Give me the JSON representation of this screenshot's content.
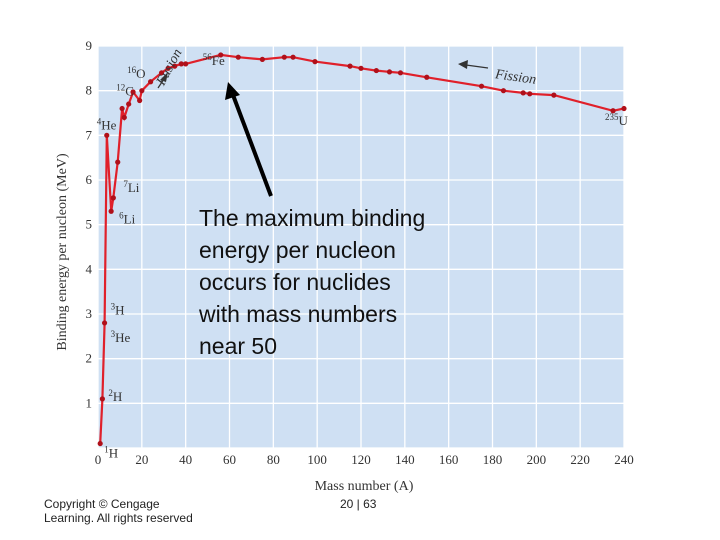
{
  "chart_data": {
    "type": "line",
    "xlabel": "Mass number (A)",
    "ylabel": "Binding energy per nucleon (MeV)",
    "xlim": [
      0,
      240
    ],
    "ylim": [
      0,
      9
    ],
    "x_ticks": [
      "0",
      "20",
      "40",
      "60",
      "80",
      "100",
      "120",
      "140",
      "160",
      "180",
      "200",
      "220",
      "240"
    ],
    "y_ticks": [
      "1",
      "2",
      "3",
      "4",
      "5",
      "6",
      "7",
      "8",
      "9"
    ],
    "grid": true,
    "line_color": "#e0202a",
    "background_color": "#cfe0f3",
    "points": [
      {
        "x": 1,
        "y": 0.1
      },
      {
        "x": 2,
        "y": 1.1
      },
      {
        "x": 3,
        "y": 2.8
      },
      {
        "x": 4,
        "y": 7.0
      },
      {
        "x": 6,
        "y": 5.3
      },
      {
        "x": 7,
        "y": 5.6
      },
      {
        "x": 9,
        "y": 6.4
      },
      {
        "x": 11,
        "y": 7.6
      },
      {
        "x": 12,
        "y": 7.4
      },
      {
        "x": 14,
        "y": 7.7
      },
      {
        "x": 16,
        "y": 7.97
      },
      {
        "x": 19,
        "y": 7.78
      },
      {
        "x": 20,
        "y": 8.0
      },
      {
        "x": 24,
        "y": 8.2
      },
      {
        "x": 29,
        "y": 8.4
      },
      {
        "x": 32,
        "y": 8.5
      },
      {
        "x": 35,
        "y": 8.55
      },
      {
        "x": 38,
        "y": 8.6
      },
      {
        "x": 40,
        "y": 8.6
      },
      {
        "x": 56,
        "y": 8.8
      },
      {
        "x": 64,
        "y": 8.75
      },
      {
        "x": 75,
        "y": 8.7
      },
      {
        "x": 85,
        "y": 8.75
      },
      {
        "x": 89,
        "y": 8.75
      },
      {
        "x": 99,
        "y": 8.65
      },
      {
        "x": 115,
        "y": 8.55
      },
      {
        "x": 120,
        "y": 8.5
      },
      {
        "x": 127,
        "y": 8.45
      },
      {
        "x": 133,
        "y": 8.42
      },
      {
        "x": 138,
        "y": 8.4
      },
      {
        "x": 150,
        "y": 8.3
      },
      {
        "x": 175,
        "y": 8.1
      },
      {
        "x": 185,
        "y": 8.0
      },
      {
        "x": 194,
        "y": 7.95
      },
      {
        "x": 197,
        "y": 7.93
      },
      {
        "x": 208,
        "y": 7.9
      },
      {
        "x": 235,
        "y": 7.55
      },
      {
        "x": 240,
        "y": 7.6
      }
    ],
    "nuclide_labels": [
      {
        "mass": "1",
        "symbol": "H",
        "x": 1,
        "y": 0.1
      },
      {
        "mass": "2",
        "symbol": "H",
        "x": 2,
        "y": 1.1
      },
      {
        "mass": "3",
        "symbol": "He",
        "x": 3,
        "y": 2.55
      },
      {
        "mass": "3",
        "symbol": "H",
        "x": 3,
        "y": 2.85
      },
      {
        "mass": "6",
        "symbol": "Li",
        "x": 6,
        "y": 5.3
      },
      {
        "mass": "7",
        "symbol": "Li",
        "x": 7,
        "y": 5.6
      },
      {
        "mass": "4",
        "symbol": "He",
        "x": 4,
        "y": 7.0
      },
      {
        "mass": "12",
        "symbol": "C",
        "x": 12,
        "y": 7.4
      },
      {
        "mass": "16",
        "symbol": "O",
        "x": 16,
        "y": 7.97
      },
      {
        "mass": "56",
        "symbol": "Fe",
        "x": 56,
        "y": 8.8
      },
      {
        "mass": "235",
        "symbol": "U",
        "x": 235,
        "y": 7.55
      }
    ],
    "annotations": [
      {
        "text": "Fusion",
        "x": 30,
        "y": 8.1,
        "rotate": -62
      },
      {
        "text": "Fission",
        "x": 181,
        "y": 8.28,
        "rotate": 8
      },
      {
        "text": "The maximum binding energy per nucleon occurs for nuclides with mass numbers near 50",
        "lines": [
          "The maximum binding",
          "energy per nucleon",
          "occurs for nuclides",
          "with mass numbers",
          "near 50"
        ]
      }
    ]
  },
  "footer": {
    "copyright": "Copyright © Cengage Learning. All rights reserved",
    "page": "20 | 63"
  }
}
